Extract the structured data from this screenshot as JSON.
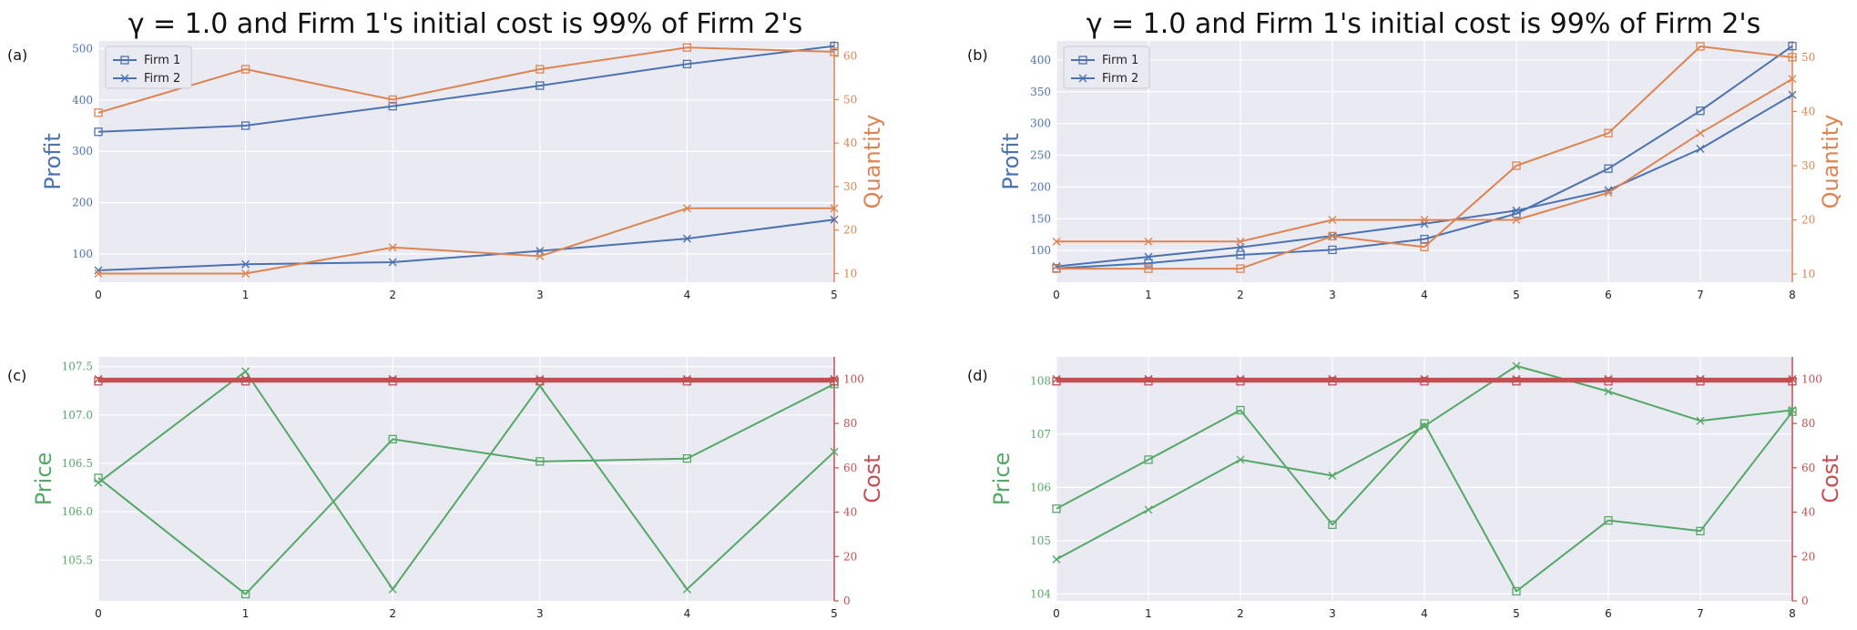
{
  "colors": {
    "firm": "#4c72b0",
    "quantity": "#dd8452",
    "price": "#55a868",
    "cost": "#c44e52",
    "bg": "#eaeaf2",
    "grid": "#ffffff"
  },
  "chart_data": [
    {
      "panel": "(a)",
      "type": "line",
      "title": "γ = 1.0 and Firm 1's initial cost is 99% of Firm 2's",
      "xlabel": "",
      "ylabel": "Profit",
      "y2label": "Quantity",
      "x": [
        0,
        1,
        2,
        3,
        4,
        5
      ],
      "xlim": [
        0,
        5
      ],
      "ylim": [
        45,
        515
      ],
      "y2lim": [
        8,
        63.5
      ],
      "yticks": [
        100,
        200,
        300,
        400,
        500
      ],
      "y2ticks": [
        10,
        20,
        30,
        40,
        50,
        60
      ],
      "legend": [
        "Firm 1",
        "Firm 2"
      ],
      "legend_position": "top-left",
      "series": [
        {
          "name": "Firm 1",
          "axis": "left",
          "marker": "square",
          "values": [
            338,
            350,
            388,
            428,
            470,
            505
          ]
        },
        {
          "name": "Firm 2",
          "axis": "left",
          "marker": "x",
          "values": [
            68,
            80,
            84,
            106,
            130,
            167
          ]
        },
        {
          "axis": "right",
          "marker": "square",
          "values": [
            47,
            57,
            50,
            57,
            62,
            61
          ]
        },
        {
          "axis": "right",
          "marker": "x",
          "values": [
            10,
            10,
            16,
            14,
            25,
            25
          ]
        }
      ]
    },
    {
      "panel": "(b)",
      "type": "line",
      "title": "γ = 1.0 and Firm 1's initial cost is 99% of Firm 2's",
      "xlabel": "",
      "ylabel": "Profit",
      "y2label": "Quantity",
      "x": [
        0,
        1,
        2,
        3,
        4,
        5,
        6,
        7,
        8
      ],
      "xlim": [
        0,
        8
      ],
      "ylim": [
        50,
        430
      ],
      "y2lim": [
        8.5,
        53
      ],
      "yticks": [
        100,
        150,
        200,
        250,
        300,
        350,
        400
      ],
      "y2ticks": [
        10,
        20,
        30,
        40,
        50
      ],
      "legend": [
        "Firm 1",
        "Firm 2"
      ],
      "legend_position": "top-left",
      "series": [
        {
          "name": "Firm 1",
          "axis": "left",
          "marker": "square",
          "values": [
            72,
            80,
            93,
            101,
            118,
            158,
            229,
            320,
            422
          ]
        },
        {
          "name": "Firm 2",
          "axis": "left",
          "marker": "x",
          "values": [
            75,
            90,
            105,
            123,
            142,
            163,
            195,
            260,
            345
          ]
        },
        {
          "axis": "right",
          "marker": "square",
          "values": [
            11,
            11,
            11,
            17,
            15,
            30,
            36,
            52,
            50
          ]
        },
        {
          "axis": "right",
          "marker": "x",
          "values": [
            16,
            16,
            16,
            20,
            20,
            20,
            25,
            36,
            46
          ]
        }
      ]
    },
    {
      "panel": "(c)",
      "type": "line",
      "xlabel": "",
      "ylabel": "Price",
      "y2label": "Cost",
      "x": [
        0,
        1,
        2,
        3,
        4,
        5
      ],
      "xlim": [
        0,
        5
      ],
      "ylim": [
        105.08,
        107.6
      ],
      "y2lim": [
        0,
        110
      ],
      "yticks": [
        105.5,
        106.0,
        106.5,
        107.0,
        107.5
      ],
      "y2ticks": [
        0,
        20,
        40,
        60,
        80,
        100
      ],
      "series": [
        {
          "axis": "left",
          "marker": "square",
          "values": [
            106.35,
            105.15,
            106.75,
            106.52,
            106.55,
            107.32
          ]
        },
        {
          "axis": "left",
          "marker": "x",
          "values": [
            106.3,
            107.45,
            105.2,
            107.3,
            105.2,
            106.62
          ]
        },
        {
          "axis": "right",
          "marker": "square",
          "values": [
            99,
            99,
            99,
            99,
            99,
            99
          ]
        },
        {
          "axis": "right",
          "marker": "x",
          "values": [
            100,
            100,
            100,
            100,
            100,
            100
          ]
        }
      ]
    },
    {
      "panel": "(d)",
      "type": "line",
      "xlabel": "",
      "ylabel": "Price",
      "y2label": "Cost",
      "x": [
        0,
        1,
        2,
        3,
        4,
        5,
        6,
        7,
        8
      ],
      "xlim": [
        0,
        8
      ],
      "ylim": [
        103.87,
        108.45
      ],
      "y2lim": [
        0,
        110
      ],
      "yticks": [
        104,
        105,
        106,
        107,
        108
      ],
      "y2ticks": [
        0,
        20,
        40,
        60,
        80,
        100
      ],
      "series": [
        {
          "axis": "left",
          "marker": "square",
          "values": [
            105.6,
            106.52,
            107.45,
            105.3,
            107.2,
            104.05,
            105.38,
            105.18,
            107.42
          ]
        },
        {
          "axis": "left",
          "marker": "x",
          "values": [
            104.65,
            105.58,
            106.52,
            106.22,
            107.15,
            108.28,
            107.8,
            107.25,
            107.45
          ]
        },
        {
          "axis": "right",
          "marker": "square",
          "values": [
            99,
            99,
            99,
            99,
            99,
            99,
            99,
            99,
            99
          ]
        },
        {
          "axis": "right",
          "marker": "x",
          "values": [
            100,
            100,
            100,
            100,
            100,
            100,
            100,
            100,
            100
          ]
        }
      ]
    }
  ]
}
